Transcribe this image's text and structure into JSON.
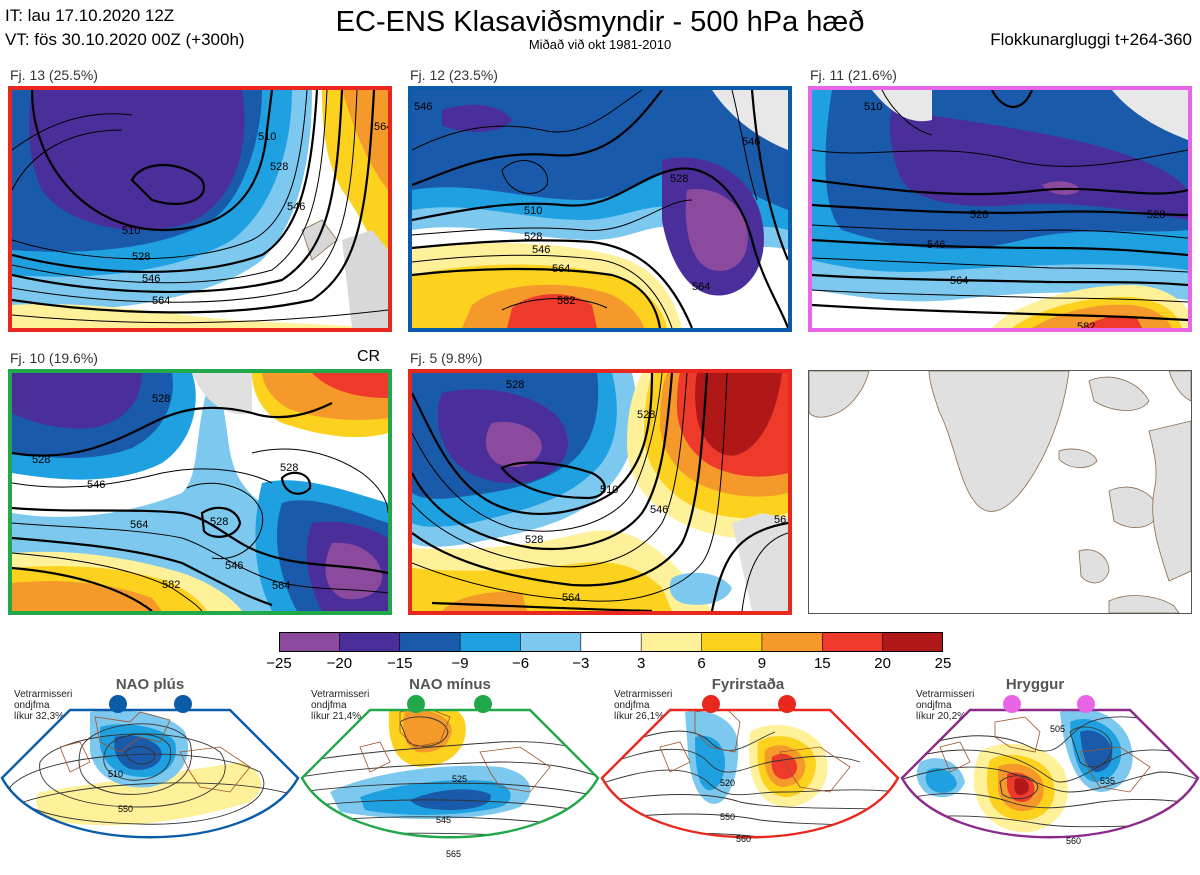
{
  "header": {
    "it_line": "IT: lau 17.10.2020 12Z",
    "vt_line": "VT: fös 30.10.2020 00Z  (+300h)",
    "title": "EC-ENS Klasaviðsmyndir - 500 hPa hæð",
    "subtitle": "Miðað við okt 1981-2010",
    "window": "Flokkunargluggi t+264-360"
  },
  "panels": [
    {
      "label": "Fj. 13 (25.5%)",
      "border": "#e8281e",
      "contours": [
        "510",
        "528",
        "546",
        "564",
        "546",
        "528",
        "510",
        "564"
      ]
    },
    {
      "label": "Fj. 12 (23.5%)",
      "border": "#0a5ca8",
      "contours": [
        "510",
        "528",
        "546",
        "564",
        "582",
        "528",
        "546",
        "564",
        "546"
      ]
    },
    {
      "label": "Fj. 11 (21.6%)",
      "border": "#e865e8",
      "contours": [
        "528",
        "546",
        "564",
        "582",
        "528",
        "510"
      ]
    },
    {
      "label": "Fj. 10 (19.6%)",
      "border": "#22a84a",
      "marker": "CR",
      "contours": [
        "528",
        "528",
        "546",
        "564",
        "528",
        "528",
        "546",
        "564",
        "582"
      ]
    },
    {
      "label": "Fj. 5 (9.8%)",
      "border": "#e8281e",
      "contours": [
        "528",
        "528",
        "510",
        "546",
        "564",
        "528",
        "56"
      ]
    }
  ],
  "colorbar": {
    "ticks": [
      "−25",
      "−20",
      "−15",
      "−9",
      "−6",
      "−3",
      "3",
      "6",
      "9",
      "15",
      "20",
      "25"
    ],
    "colors": [
      "#8c4a9e",
      "#4a2f9a",
      "#1a5aaa",
      "#1fa0e0",
      "#7cc8ee",
      "#ffffff",
      "#fff09a",
      "#fcd21e",
      "#f59a2a",
      "#ee3a2a",
      "#b01818"
    ]
  },
  "regimes": [
    {
      "name": "NAO plús",
      "note": [
        "Vetrarmisseri",
        "ondjfma",
        "líkur 32,3%"
      ],
      "color": "#0a5ca8",
      "contours": [
        "510",
        "550"
      ]
    },
    {
      "name": "NAO mínus",
      "note": [
        "Vetrarmisseri",
        "ondjfma",
        "líkur 21,4%"
      ],
      "color": "#22a84a",
      "contours": [
        "525",
        "545",
        "565"
      ]
    },
    {
      "name": "Fyrirstaða",
      "note": [
        "Vetrarmisseri",
        "ondjfma",
        "líkur 26,1%"
      ],
      "color": "#e8281e",
      "contours": [
        "520",
        "550",
        "560"
      ]
    },
    {
      "name": "Hryggur",
      "note": [
        "Vetrarmisseri",
        "ondjfma",
        "líkur 20,2%"
      ],
      "color": "#e865e8",
      "border": "#8b2a8b",
      "contours": [
        "505",
        "535",
        "560"
      ]
    }
  ]
}
